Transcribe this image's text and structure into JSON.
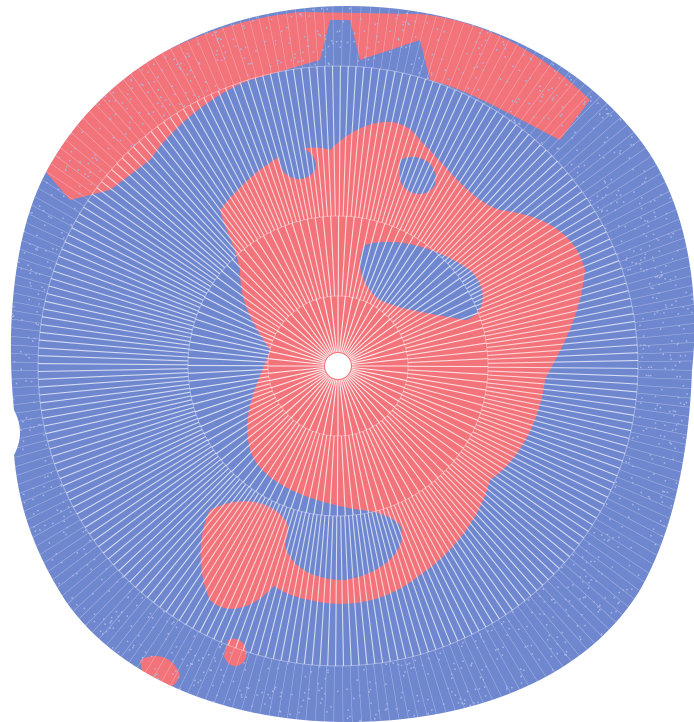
{
  "colors": {
    "background": "#ffffff",
    "ocean_blue": "#6f87cf",
    "ocean_blue_light": "#a9b7e4",
    "land_pink": "#f2737a",
    "land_pink_light": "#f8aeb2",
    "center_white": "#ffffff"
  },
  "pattern": {
    "rings": 4,
    "spokes_inner": 120,
    "spokes_outer": 240
  }
}
